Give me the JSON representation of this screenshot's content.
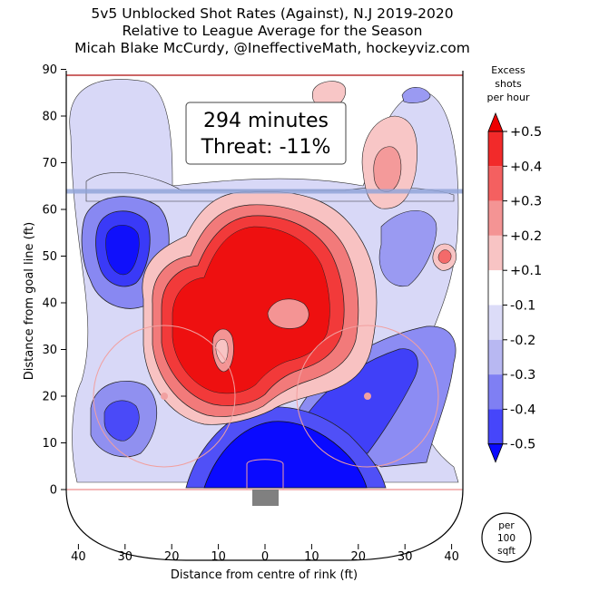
{
  "chart_data": {
    "type": "heatmap",
    "title": "5v5 Unblocked Shot Rates (Against), N.J 2019-2020",
    "subtitle": "Relative to League Average for the Season",
    "author": "Micah Blake McCurdy, @IneffectiveMath, hockeyviz.com",
    "xlabel": "Distance from centre of rink (ft)",
    "ylabel": "Distance from goal line (ft)",
    "xlim": [
      -42.5,
      42.5
    ],
    "ylim": [
      -11,
      90
    ],
    "x_ticks": [
      -40,
      -30,
      -20,
      -10,
      0,
      10,
      20,
      30,
      40
    ],
    "x_tick_labels": [
      "40",
      "30",
      "20",
      "10",
      "0",
      "10",
      "20",
      "30",
      "40"
    ],
    "y_ticks": [
      0,
      10,
      20,
      30,
      40,
      50,
      60,
      70,
      80,
      90
    ],
    "y_tick_labels": [
      "0",
      "10",
      "20",
      "30",
      "40",
      "50",
      "60",
      "70",
      "80",
      "90"
    ],
    "annotation": {
      "minutes": "294 minutes",
      "threat": "Threat: -11%"
    },
    "colorbar": {
      "title": [
        "Excess",
        "shots",
        "per hour"
      ],
      "levels": [
        -0.5,
        -0.4,
        -0.3,
        -0.2,
        -0.1,
        0.1,
        0.2,
        0.3,
        0.4,
        0.5
      ],
      "tick_labels": [
        "+0.5",
        "+0.4",
        "+0.3",
        "+0.2",
        "+0.1",
        "-0.1",
        "-0.2",
        "-0.3",
        "-0.4",
        "-0.5"
      ],
      "colors": [
        "#0a0aff",
        "#4646fa",
        "#7f7ff3",
        "#b8b8f2",
        "#dcdcf8",
        "#ffffff",
        "#f8c4c4",
        "#f49494",
        "#f46060",
        "#f22a2a",
        "#ee0000"
      ],
      "unit_lines": [
        "per",
        "100",
        "sqft"
      ]
    },
    "regions": [
      {
        "name": "slot-high-danger",
        "x": 0,
        "y": 36,
        "value": 0.5
      },
      {
        "name": "left-slot",
        "x": -12,
        "y": 32,
        "value": 0.45
      },
      {
        "name": "right-upper-slot",
        "x": 20,
        "y": 78,
        "value": 0.2
      },
      {
        "name": "crease-area",
        "x": 0,
        "y": 5,
        "value": -0.5
      },
      {
        "name": "left-point",
        "x": -30,
        "y": 52,
        "value": -0.45
      },
      {
        "name": "left-circle",
        "x": -28,
        "y": 18,
        "value": -0.3
      },
      {
        "name": "right-circle",
        "x": 20,
        "y": 18,
        "value": -0.3
      },
      {
        "name": "right-point",
        "x": 37,
        "y": 50,
        "value": 0.2
      }
    ]
  }
}
